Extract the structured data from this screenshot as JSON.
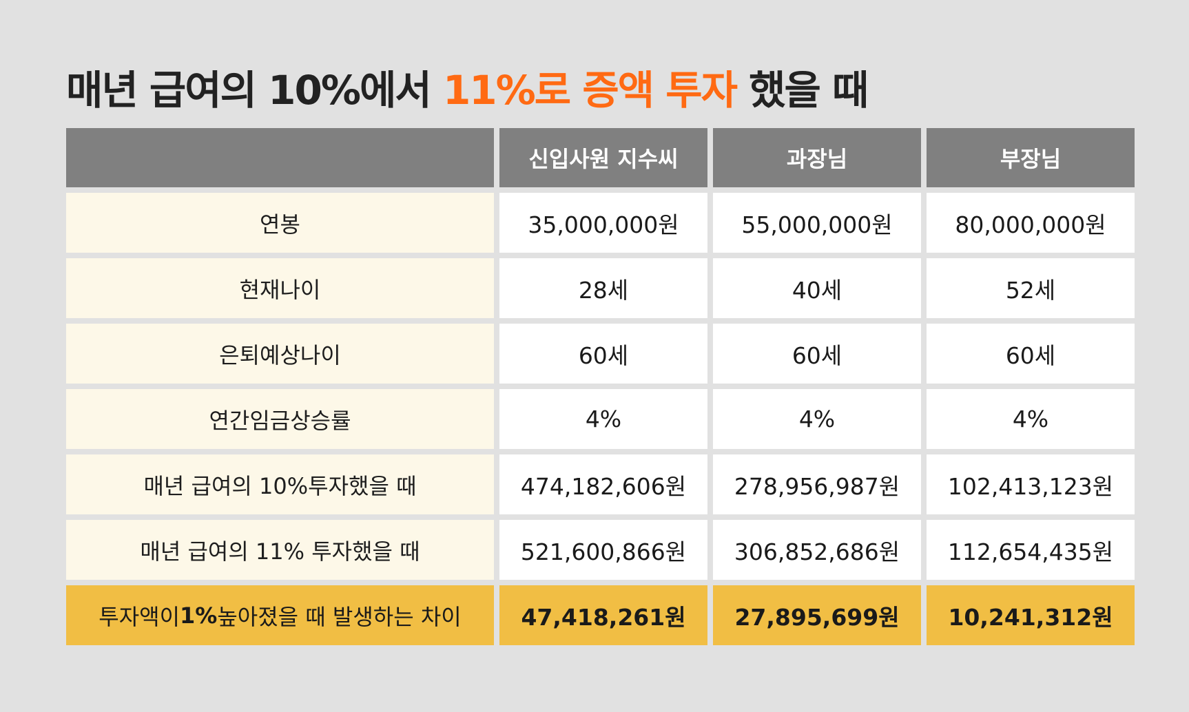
{
  "title": {
    "prefix": "매년 급여의 10%에서 ",
    "highlight": "11%로 증액 투자",
    "suffix": " 했을 때"
  },
  "colors": {
    "accent": "#ff6a13",
    "header_bg": "#808080",
    "label_bg": "#fdf8e8",
    "total_bg": "#f1be44",
    "page_bg": "#e1e1e1"
  },
  "table": {
    "headers": [
      "",
      "신입사원 지수씨",
      "과장님",
      "부장님"
    ],
    "rows": [
      {
        "label": "연봉",
        "values": [
          "35,000,000원",
          "55,000,000원",
          "80,000,000원"
        ]
      },
      {
        "label": "현재나이",
        "values": [
          "28세",
          "40세",
          "52세"
        ]
      },
      {
        "label": "은퇴예상나이",
        "values": [
          "60세",
          "60세",
          "60세"
        ]
      },
      {
        "label": "연간임금상승률",
        "values": [
          "4%",
          "4%",
          "4%"
        ]
      },
      {
        "label": "매년 급여의 10%투자했을 때",
        "values": [
          "474,182,606원",
          "278,956,987원",
          "102,413,123원"
        ]
      },
      {
        "label": "매년 급여의 11% 투자했을 때",
        "values": [
          "521,600,866원",
          "306,852,686원",
          "112,654,435원"
        ]
      }
    ],
    "total": {
      "label_pre": "투자액이 ",
      "label_bold": "1%",
      "label_post": " 높아졌을 때 발생하는 차이",
      "values": [
        "47,418,261원",
        "27,895,699원",
        "10,241,312원"
      ]
    }
  }
}
